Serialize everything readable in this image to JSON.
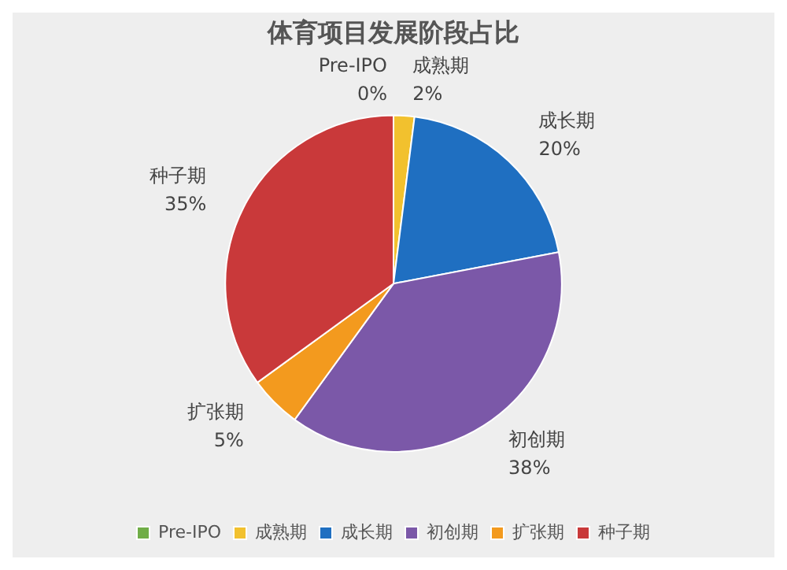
{
  "chart_data": {
    "type": "pie",
    "title": "体育项目发展阶段占比",
    "categories": [
      "Pre-IPO",
      "成熟期",
      "成长期",
      "初创期",
      "扩张期",
      "种子期"
    ],
    "values": [
      0,
      2,
      20,
      38,
      5,
      35
    ],
    "value_labels": [
      "0%",
      "2%",
      "20%",
      "38%",
      "5%",
      "35%"
    ],
    "colors": [
      "#70ad47",
      "#f2c12e",
      "#1f6fc1",
      "#7b58a8",
      "#f39a1e",
      "#c9393a"
    ],
    "legend": "bottom"
  }
}
